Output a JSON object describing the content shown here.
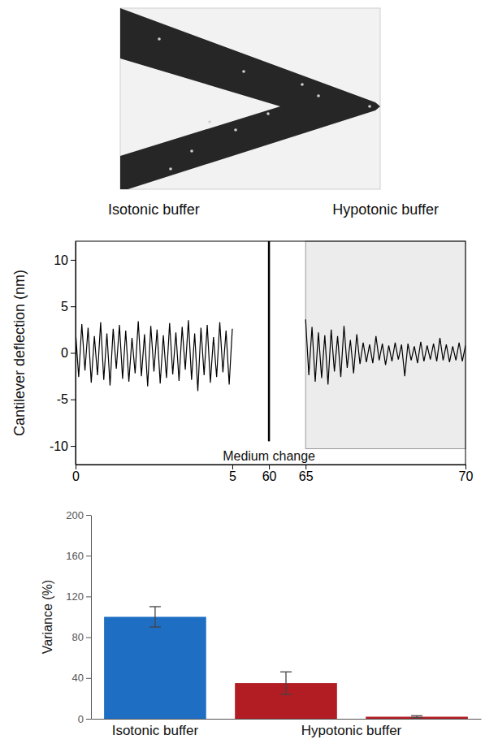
{
  "chart_data": [
    {
      "type": "line",
      "y_label": "Cantilever deflection (nm)",
      "panel_labels": [
        {
          "text": "Isotonic buffer",
          "x": 2.5
        },
        {
          "text": "Hypotonic buffer",
          "x": 67.5
        }
      ],
      "annotations": [
        {
          "text": "Medium change",
          "x": 60,
          "y": [
            -9.5,
            12
          ]
        }
      ],
      "highlight": {
        "x": [
          65,
          70
        ],
        "y": [
          -10.3,
          12
        ]
      },
      "xlim": [
        0,
        70
      ],
      "xticks": [
        0,
        5,
        60,
        65,
        70
      ],
      "ylim": [
        -12,
        12
      ],
      "yticks": [
        -10,
        -5,
        0,
        5,
        10
      ],
      "series": [
        {
          "color": "#000000",
          "x": [
            0,
            0.1,
            0.2,
            0.3,
            0.4,
            0.5,
            0.6,
            0.7,
            0.8,
            0.9,
            1,
            1.1,
            1.2,
            1.3,
            1.4,
            1.5,
            1.6,
            1.7,
            1.8,
            1.9,
            2,
            2.1,
            2.2,
            2.3,
            2.4,
            2.5,
            2.6,
            2.7,
            2.8,
            2.9,
            3,
            3.1,
            3.2,
            3.3,
            3.4,
            3.5,
            3.6,
            3.7,
            3.8,
            3.9,
            4,
            4.1,
            4.2,
            4.3,
            4.4,
            4.5,
            4.6,
            4.7,
            4.8,
            4.9,
            5
          ],
          "values": [
            2.3,
            -2.6,
            3.1,
            -1.9,
            2.7,
            -3.2,
            1.8,
            -2.4,
            3.3,
            -2.9,
            2.1,
            -3.5,
            2.6,
            -1.7,
            3.0,
            -2.8,
            2.4,
            -3.1,
            1.6,
            -2.2,
            3.4,
            -2.5,
            2.0,
            -3.6,
            2.9,
            -2.0,
            2.5,
            -3.3,
            1.9,
            -2.7,
            3.2,
            -2.3,
            2.2,
            -3.0,
            2.8,
            -1.8,
            3.5,
            -2.9,
            2.1,
            -4.1,
            2.7,
            -2.4,
            3.0,
            -3.2,
            1.7,
            -2.6,
            3.3,
            -2.1,
            2.4,
            -3.4,
            2.6
          ]
        },
        {
          "color": "#000000",
          "x": [
            65,
            65.1,
            65.2,
            65.3,
            65.4,
            65.5,
            65.6,
            65.7,
            65.8,
            65.9,
            66,
            66.1,
            66.2,
            66.3,
            66.4,
            66.5,
            66.6,
            66.7,
            66.8,
            66.9,
            67,
            67.1,
            67.2,
            67.3,
            67.4,
            67.5,
            67.6,
            67.7,
            67.8,
            67.9,
            68,
            68.1,
            68.2,
            68.3,
            68.4,
            68.5,
            68.6,
            68.7,
            68.8,
            68.9,
            69,
            69.1,
            69.2,
            69.3,
            69.4,
            69.5,
            69.6,
            69.7,
            69.8,
            69.9,
            70
          ],
          "values": [
            3.6,
            -2.4,
            2.8,
            -3.1,
            2.2,
            -2.7,
            1.9,
            -3.4,
            2.5,
            -2.0,
            1.8,
            -2.6,
            2.9,
            -1.6,
            1.4,
            -2.2,
            2.0,
            -1.2,
            1.1,
            -1.0,
            0.9,
            -1.1,
            1.8,
            -0.8,
            1.0,
            -1.3,
            0.8,
            -0.9,
            1.1,
            -0.7,
            0.9,
            -2.5,
            1.0,
            -0.8,
            0.7,
            -1.1,
            1.2,
            -0.9,
            0.8,
            -0.7,
            1.0,
            -0.9,
            1.6,
            -0.8,
            0.9,
            -1.0,
            0.7,
            -0.8,
            1.1,
            -0.9,
            0.8
          ]
        }
      ]
    },
    {
      "type": "bar",
      "y_label": "Variance (%)",
      "categories": [
        "Isotonic buffer",
        null,
        null
      ],
      "group_label": {
        "text": "Hypotonic buffer",
        "from": 1,
        "to": 2
      },
      "values": [
        100,
        35,
        2
      ],
      "errors": [
        10,
        11,
        1
      ],
      "colors": [
        "#1e6fc4",
        "#b21d23",
        "#b21d23"
      ],
      "ylim": [
        0,
        200
      ],
      "yticks": [
        0,
        40,
        80,
        120,
        160,
        200
      ]
    }
  ]
}
